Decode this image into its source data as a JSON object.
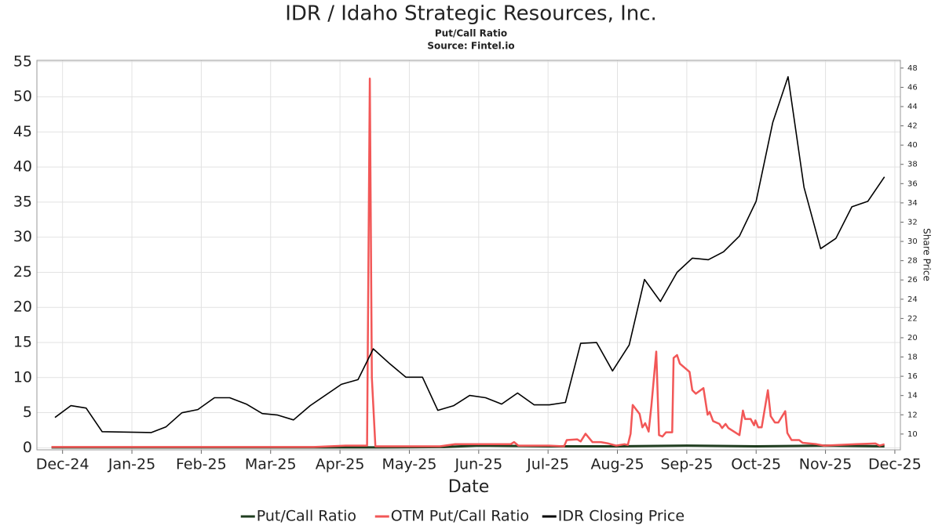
{
  "chart_data": {
    "type": "line",
    "title": "IDR / Idaho Strategic Resources, Inc.",
    "subtitle": "Put/Call Ratio",
    "source": "Source: Fintel.io",
    "x_label": "Date",
    "y2_label": "Share Price",
    "xlim": [
      -0.37,
      12.08
    ],
    "xticks": [
      {
        "value": 0,
        "label": "Dec-24"
      },
      {
        "value": 1,
        "label": "Jan-25"
      },
      {
        "value": 2,
        "label": "Feb-25"
      },
      {
        "value": 3,
        "label": "Mar-25"
      },
      {
        "value": 4,
        "label": "Apr-25"
      },
      {
        "value": 5,
        "label": "May-25"
      },
      {
        "value": 6,
        "label": "Jun-25"
      },
      {
        "value": 7,
        "label": "Jul-25"
      },
      {
        "value": 8,
        "label": "Aug-25"
      },
      {
        "value": 9,
        "label": "Sep-25"
      },
      {
        "value": 10,
        "label": "Oct-25"
      },
      {
        "value": 11,
        "label": "Nov-25"
      },
      {
        "value": 12,
        "label": "Dec-25"
      }
    ],
    "ylim": [
      -0.3,
      55.2
    ],
    "yticks": [
      0,
      5,
      10,
      15,
      20,
      25,
      30,
      35,
      40,
      45,
      50,
      55
    ],
    "y2lim": [
      8.36,
      48.8
    ],
    "y2ticks": [
      10,
      12,
      14,
      16,
      18,
      20,
      22,
      24,
      26,
      28,
      30,
      32,
      34,
      36,
      38,
      40,
      42,
      44,
      46,
      48
    ],
    "grid": true,
    "legend": "bottom",
    "series": [
      {
        "name": "Put/Call Ratio",
        "color": "#1f3d1f",
        "x": [
          -0.16,
          4.5,
          5.5,
          6,
          7,
          8,
          9,
          10,
          11,
          11.85
        ],
        "values": [
          0.05,
          0.05,
          0.1,
          0.3,
          0.2,
          0.2,
          0.3,
          0.2,
          0.3,
          0.2
        ]
      },
      {
        "name": "OTM Put/Call Ratio",
        "color": "#f25757",
        "x": [
          -0.16,
          3.62,
          4.08,
          4.39,
          4.43,
          4.46,
          4.51,
          5.44,
          5.66,
          6.46,
          6.51,
          6.57,
          7.02,
          7.23,
          7.27,
          7.42,
          7.47,
          7.54,
          7.64,
          7.76,
          7.87,
          7.98,
          8.1,
          8.15,
          8.19,
          8.22,
          8.32,
          8.36,
          8.4,
          8.45,
          8.49,
          8.56,
          8.6,
          8.65,
          8.7,
          8.79,
          8.81,
          8.86,
          8.9,
          9.04,
          9.08,
          9.13,
          9.24,
          9.3,
          9.33,
          9.38,
          9.47,
          9.51,
          9.56,
          9.6,
          9.76,
          9.81,
          9.84,
          9.92,
          9.97,
          9.99,
          10.03,
          10.08,
          10.17,
          10.21,
          10.27,
          10.32,
          10.42,
          10.45,
          10.51,
          10.62,
          10.67,
          10.87,
          10.98,
          11.44,
          11.72,
          11.78,
          11.85
        ],
        "values": [
          0.1,
          0.1,
          0.3,
          0.3,
          52.6,
          10,
          0.2,
          0.2,
          0.5,
          0.5,
          0.8,
          0.3,
          0.3,
          0.2,
          1.1,
          1.2,
          0.9,
          2.0,
          0.8,
          0.8,
          0.6,
          0.3,
          0.5,
          0.4,
          2,
          6.1,
          4.8,
          2.9,
          3.5,
          2.3,
          6,
          13.7,
          1.8,
          1.6,
          2.2,
          2.2,
          12.8,
          13.2,
          12,
          10.8,
          8.2,
          7.7,
          8.5,
          4.7,
          5.1,
          3.8,
          3.4,
          2.8,
          3.4,
          2.8,
          1.8,
          5.3,
          4.1,
          4.1,
          3.2,
          3.9,
          2.9,
          2.9,
          8.2,
          4.5,
          3.6,
          3.6,
          5.2,
          2.1,
          1.1,
          1.1,
          0.7,
          0.5,
          0.3,
          0.5,
          0.6,
          0.3,
          0.5
        ]
      },
      {
        "name": "IDR Closing Price",
        "color": "#000000",
        "axis": "y2",
        "x": [
          -0.11,
          0.12,
          0.34,
          0.57,
          1.28,
          1.49,
          1.72,
          1.95,
          2.19,
          2.41,
          2.65,
          2.88,
          3.1,
          3.33,
          3.57,
          4.02,
          4.26,
          4.48,
          4.72,
          4.95,
          5.19,
          5.41,
          5.64,
          5.87,
          6.1,
          6.33,
          6.56,
          6.8,
          7.02,
          7.25,
          7.47,
          7.7,
          7.93,
          8.17,
          8.39,
          8.62,
          8.86,
          9.08,
          9.31,
          9.53,
          9.76,
          10.0,
          10.24,
          10.46,
          10.69,
          10.93,
          11.15,
          11.38,
          11.61,
          11.85
        ],
        "values": [
          11.72,
          12.95,
          12.7,
          10.25,
          10.16,
          10.74,
          12.21,
          12.54,
          13.77,
          13.77,
          13.11,
          12.13,
          11.97,
          11.47,
          12.95,
          15.16,
          15.65,
          18.85,
          17.29,
          15.9,
          15.9,
          12.46,
          12.95,
          14.01,
          13.77,
          13.11,
          14.26,
          13.03,
          13.03,
          13.28,
          19.42,
          19.5,
          16.55,
          19.25,
          26.05,
          23.76,
          26.79,
          28.26,
          28.1,
          28.92,
          30.56,
          34.16,
          42.35,
          47.1,
          35.63,
          29.25,
          30.31,
          33.59,
          34.16,
          36.7
        ]
      }
    ]
  }
}
